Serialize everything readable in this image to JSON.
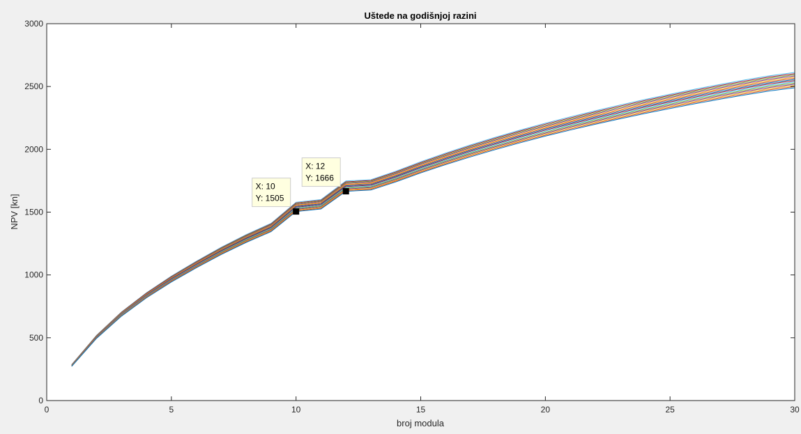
{
  "chart_data": {
    "type": "line",
    "title": "Uštede na godišnjoj razini",
    "xlabel": "broj modula",
    "ylabel": "NPV [kn]",
    "xlim": [
      0,
      30
    ],
    "ylim": [
      0,
      3000
    ],
    "x_ticks": [
      "0",
      "5",
      "10",
      "15",
      "20",
      "25",
      "30"
    ],
    "y_ticks": [
      "0",
      "500",
      "1000",
      "1500",
      "2000",
      "2500",
      "3000"
    ],
    "grid": false,
    "x": [
      1,
      2,
      3,
      4,
      5,
      6,
      7,
      8,
      9,
      10,
      11,
      12,
      13,
      14,
      15,
      16,
      17,
      18,
      19,
      20,
      21,
      22,
      23,
      24,
      25,
      26,
      27,
      28,
      29,
      30
    ],
    "series_count": 14,
    "series_note": "family of closely spaced curves; lowest curve values given, upper curves offset by scale factor",
    "base_series": [
      272,
      495,
      672,
      818,
      944,
      1057,
      1163,
      1259,
      1345,
      1505,
      1525,
      1666,
      1676,
      1740,
      1812,
      1878,
      1940,
      1998,
      2053,
      2105,
      2153,
      2199,
      2243,
      2285,
      2325,
      2363,
      2399,
      2433,
      2465,
      2490
    ],
    "top_offset_ratio": 0.049,
    "series_colors": [
      "#0072bd",
      "#d95319",
      "#edb120",
      "#7e2f8e",
      "#77ac30",
      "#4dbeee",
      "#a2142f",
      "#0072bd",
      "#d95319",
      "#edb120",
      "#7e2f8e",
      "#77ac30",
      "#a2142f",
      "#4dbeee"
    ],
    "annotations": [
      {
        "x": 10,
        "y": 1505,
        "line1": "X: 10",
        "line2": "Y: 1505"
      },
      {
        "x": 12,
        "y": 1666,
        "line1": "X: 12",
        "line2": "Y: 1666"
      }
    ]
  }
}
